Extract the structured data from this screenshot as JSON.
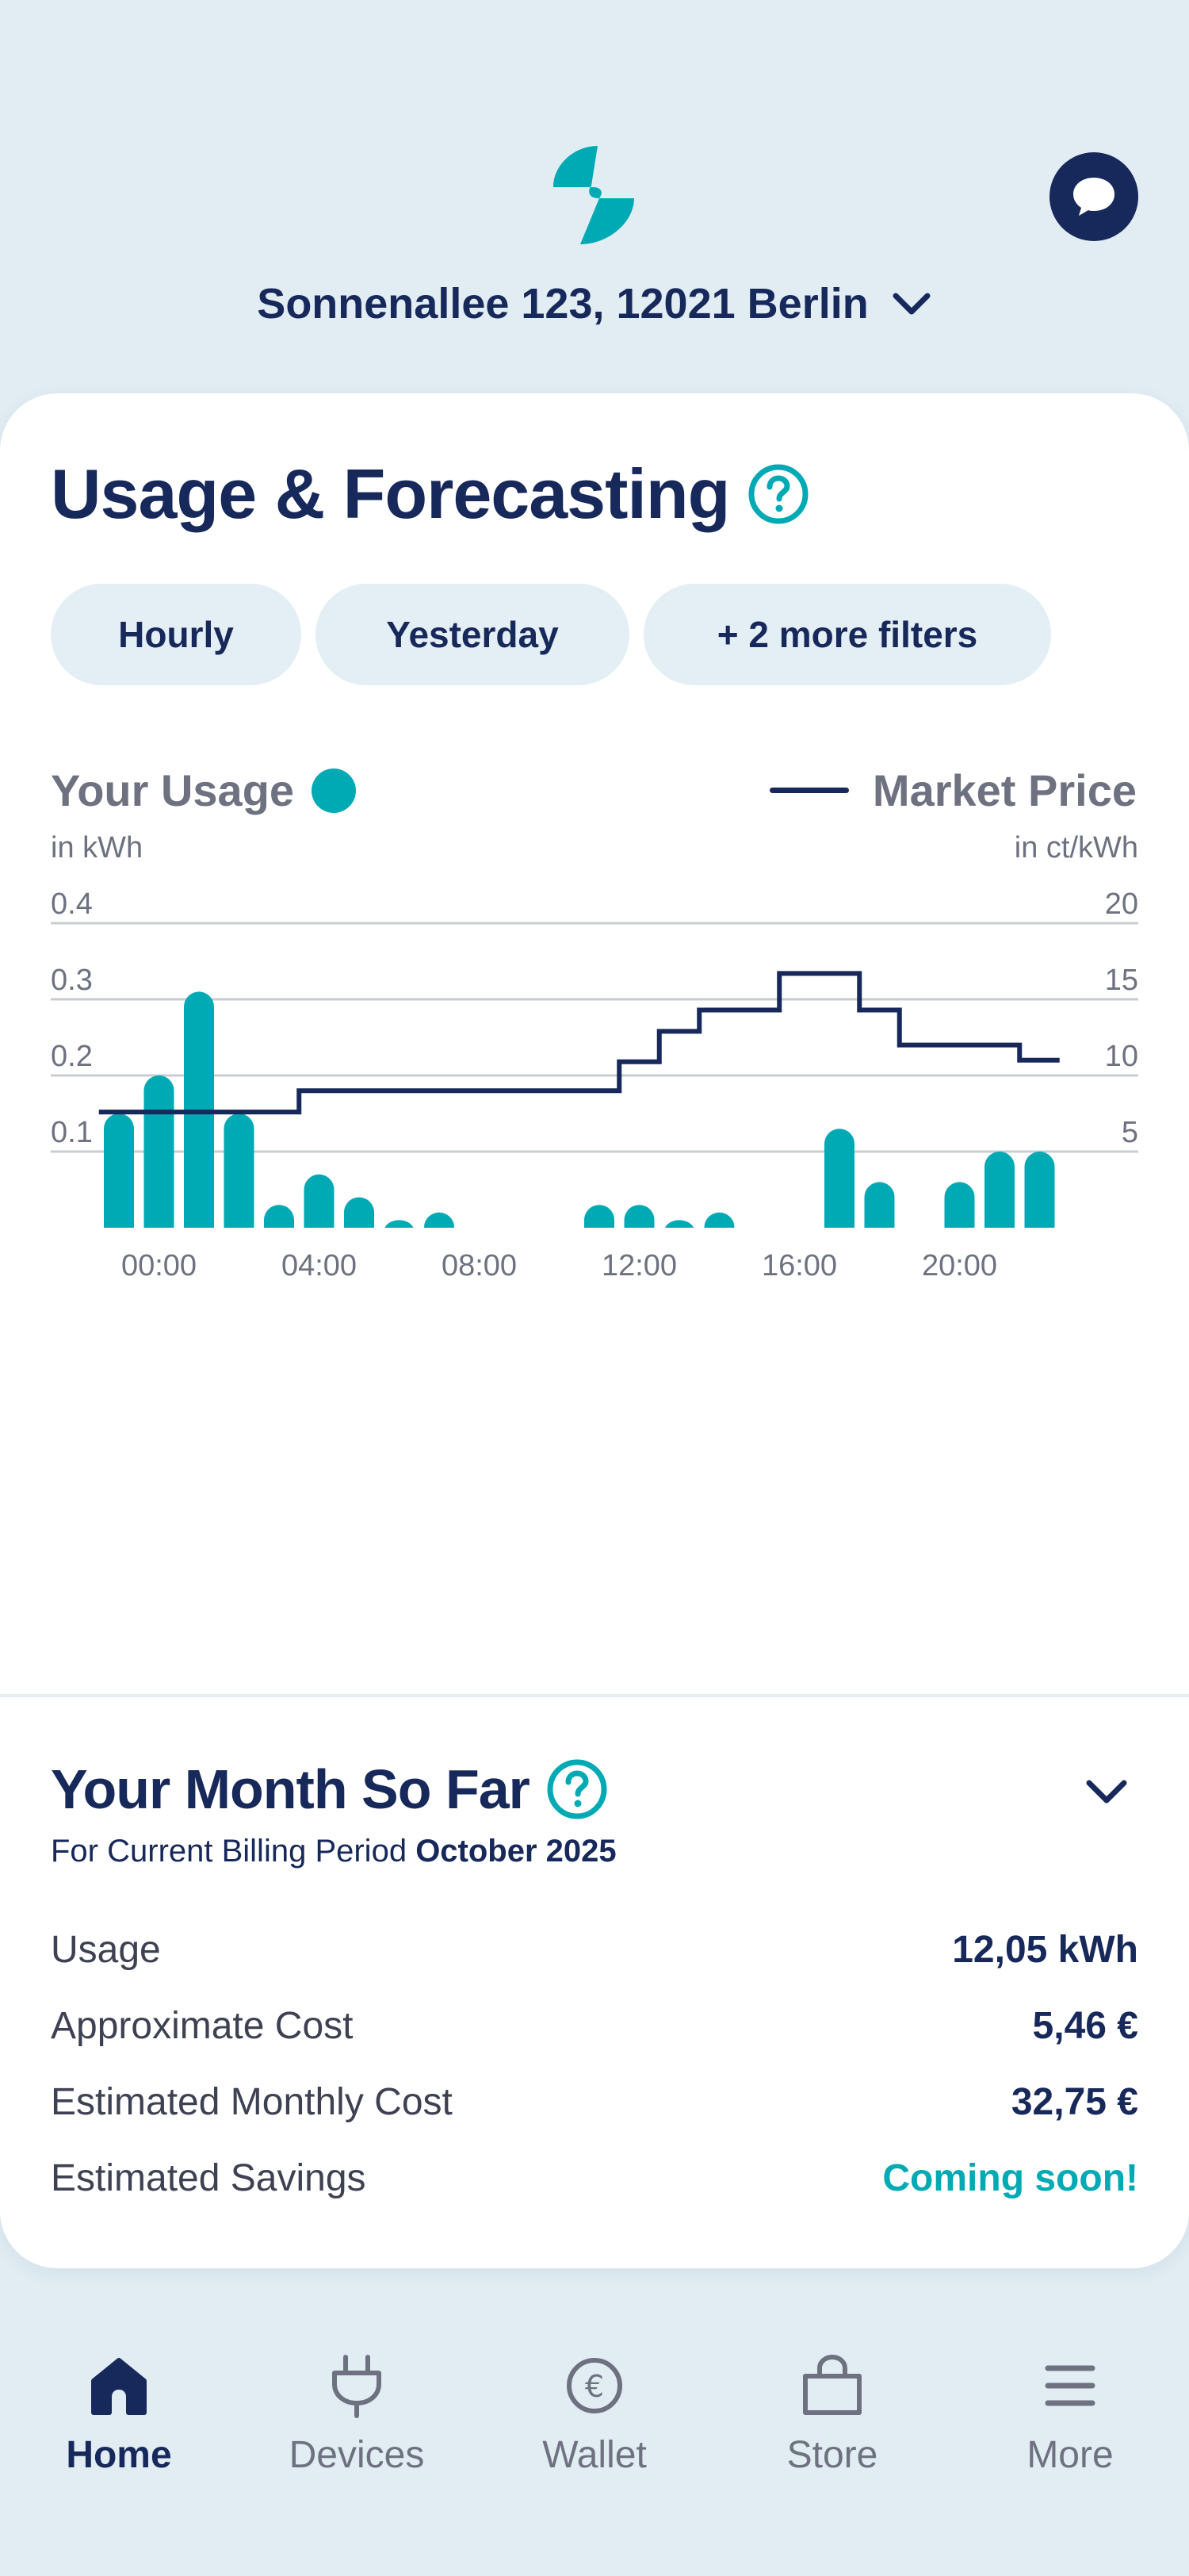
{
  "header": {
    "address": "Sonnenallee 123, 12021 Berlin",
    "logo_icon": "lightning-logo-icon",
    "chat_icon": "chat-bubble-icon"
  },
  "usage": {
    "title": "Usage & Forecasting",
    "filters": [
      "Hourly",
      "Yesterday",
      "+ 2 more filters"
    ],
    "legend_usage": "Your Usage",
    "legend_price": "Market Price",
    "unit_usage": "in kWh",
    "unit_price": "in ct/kWh"
  },
  "chart_data": {
    "type": "bar",
    "x": [
      0,
      1,
      2,
      3,
      4,
      5,
      6,
      7,
      8,
      9,
      10,
      11,
      12,
      13,
      14,
      15,
      16,
      17,
      18,
      19,
      20,
      21,
      22,
      23
    ],
    "x_tick_labels": [
      "00:00",
      "04:00",
      "08:00",
      "12:00",
      "16:00",
      "20:00"
    ],
    "x_tick_hours": [
      1,
      5,
      9,
      13,
      17,
      21
    ],
    "series": [
      {
        "name": "Your Usage",
        "axis": "left",
        "color": "#00aab4",
        "values": [
          0.15,
          0.2,
          0.31,
          0.15,
          0.03,
          0.07,
          0.04,
          0.01,
          0.02,
          0.0,
          0.0,
          0.0,
          0.03,
          0.03,
          0.01,
          0.02,
          0.0,
          0.0,
          0.13,
          0.06,
          0.0,
          0.06,
          0.1,
          0.1
        ]
      },
      {
        "name": "Market Price",
        "axis": "right",
        "type": "step-line",
        "color": "#17285a",
        "values": [
          7.6,
          7.6,
          7.6,
          7.6,
          7.6,
          9.0,
          9.0,
          9.0,
          9.0,
          9.0,
          9.0,
          9.0,
          9.0,
          10.9,
          12.9,
          14.3,
          14.3,
          16.7,
          16.7,
          14.3,
          12.0,
          12.0,
          12.0,
          11.0
        ]
      }
    ],
    "y_left_ticks": [
      "0.1",
      "0.2",
      "0.3",
      "0.4"
    ],
    "y_right_ticks": [
      "5",
      "10",
      "15",
      "20"
    ],
    "ylim_left": [
      0,
      0.4
    ],
    "ylim_right": [
      0,
      20
    ],
    "grid": true
  },
  "month": {
    "title": "Your Month So Far",
    "billing_prefix": "For Current Billing Period ",
    "billing_period": "October 2025",
    "rows": [
      {
        "label": "Usage",
        "value": "12,05 kWh"
      },
      {
        "label": "Approximate Cost",
        "value": "5,46 €"
      },
      {
        "label": "Estimated Monthly Cost",
        "value": "32,75 €"
      },
      {
        "label": "Estimated Savings",
        "value": "Coming soon!"
      }
    ]
  },
  "nav": {
    "items": [
      {
        "label": "Home",
        "icon": "home-icon",
        "active": true
      },
      {
        "label": "Devices",
        "icon": "plug-icon",
        "active": false
      },
      {
        "label": "Wallet",
        "icon": "euro-coin-icon",
        "active": false
      },
      {
        "label": "Store",
        "icon": "shopping-bag-icon",
        "active": false
      },
      {
        "label": "More",
        "icon": "menu-icon",
        "active": false
      }
    ]
  }
}
